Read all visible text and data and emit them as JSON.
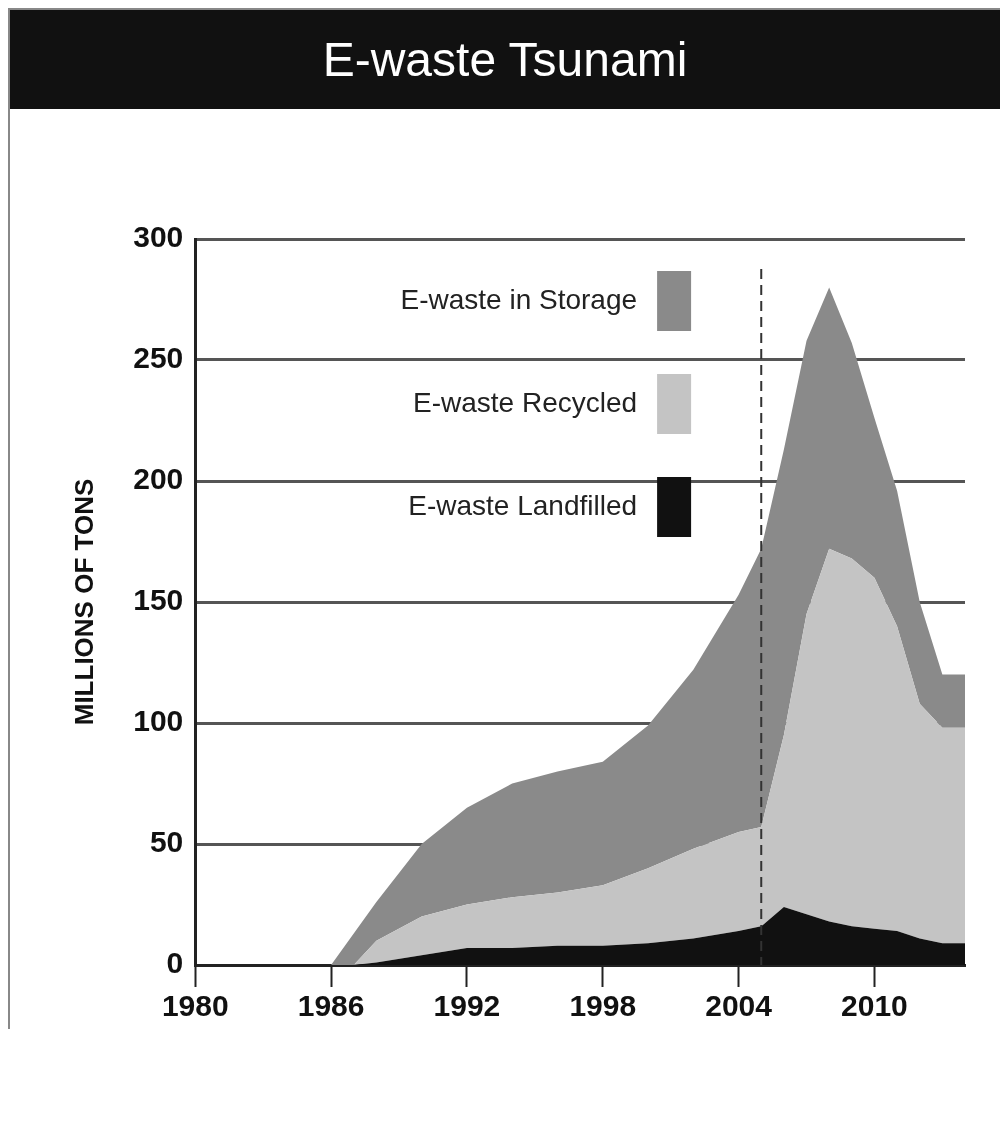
{
  "chart_data": {
    "type": "area",
    "title": "E-waste Tsunami",
    "ylabel": "MILLIONS OF TONS",
    "stacked": true,
    "x": [
      1980,
      1986,
      1987,
      1988,
      1990,
      1992,
      1994,
      1996,
      1998,
      2000,
      2002,
      2004,
      2005,
      2006,
      2007,
      2008,
      2009,
      2010,
      2011,
      2012,
      2013,
      2014
    ],
    "series": [
      {
        "name": "E-waste Landfilled",
        "color": "#111111",
        "values": [
          0,
          0,
          0,
          1,
          4,
          7,
          7,
          8,
          8,
          9,
          11,
          14,
          16,
          24,
          21,
          18,
          16,
          15,
          14,
          11,
          9,
          9
        ]
      },
      {
        "name": "E-waste Recycled",
        "color": "#c4c4c4",
        "values": [
          0,
          0,
          0,
          9,
          16,
          18,
          21,
          22,
          25,
          31,
          37,
          41,
          41,
          71,
          124,
          154,
          152,
          145,
          126,
          97,
          89,
          89
        ]
      },
      {
        "name": "E-waste in Storage",
        "color": "#8a8a8a",
        "values": [
          0,
          0,
          13,
          16,
          30,
          40,
          47,
          50,
          51,
          59,
          74,
          98,
          115,
          118,
          113,
          108,
          89,
          66,
          56,
          42,
          22,
          22
        ]
      }
    ],
    "xlim": [
      1980,
      2014
    ],
    "xticks": [
      1980,
      1986,
      1992,
      1998,
      2004,
      2010
    ],
    "ylim": [
      0,
      300
    ],
    "yticks": [
      0,
      50,
      100,
      150,
      200,
      250,
      300
    ],
    "ref_lines": [
      {
        "axis": "x",
        "value": 2005,
        "color": "#333333",
        "line_style": "dashed"
      }
    ],
    "grid": "y",
    "legend": "top"
  }
}
